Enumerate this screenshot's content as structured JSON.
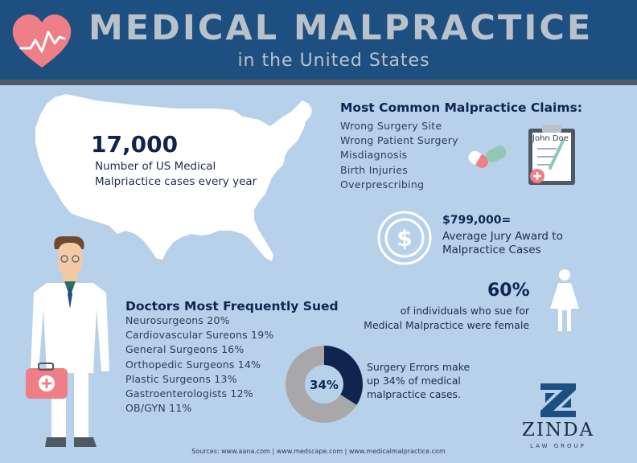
{
  "header": {
    "title": "MEDICAL MALPRACTICE",
    "subtitle": "in the United States",
    "icon": "heart-pulse-icon"
  },
  "us_cases": {
    "number": "17,000",
    "label_line1": "Number of US Medical",
    "label_line2": "Malpriactice cases every year",
    "icon": "us-map-icon"
  },
  "claims": {
    "heading": "Most Common Malpractice Claims:",
    "items": [
      "Wrong Surgery Site",
      "Wrong Patient Surgery",
      "Misdiagnosis",
      "Birth Injuries",
      "Overprescribing"
    ],
    "clipboard_name": "John Doe",
    "icons": [
      "pill-icon",
      "clipboard-icon"
    ]
  },
  "jury": {
    "amount": "$799,000=",
    "line1": "Average Jury Award to",
    "line2": "Malpractice Cases",
    "icon": "dollar-icon"
  },
  "female": {
    "percent": "60%",
    "line1": "of individuals who sue for",
    "line2": "Medical Malpractice were female",
    "icon": "female-icon"
  },
  "doctors": {
    "heading": "Doctors Most Frequently Sued",
    "items": [
      "Neurosurgeons 20%",
      "Cardiovascular Sureons 19%",
      "General Surgeons 16%",
      "Orthopedic Surgeons 14%",
      "Plastic Surgeons 13%",
      "Gastroenterologists 12%",
      "OB/GYN 11%"
    ],
    "icon": "doctor-icon"
  },
  "surgery_errors": {
    "percent_label": "34%",
    "fraction": 0.34,
    "line1": "Surgery Errors make",
    "line2": "up 34% of medical",
    "line3": "malpractice cases."
  },
  "brand": {
    "name": "ZINDA",
    "sub": "LAW GROUP",
    "icon": "zinda-logo-icon"
  },
  "sources": "Sources: www.aana.com | www.medscape.com | www.medicalmalpractice.com",
  "colors": {
    "header": "#1d4f80",
    "background": "#b7d1ea",
    "navy": "#0f2550",
    "pink": "#ee7f86",
    "gray": "#b9c2ca"
  }
}
